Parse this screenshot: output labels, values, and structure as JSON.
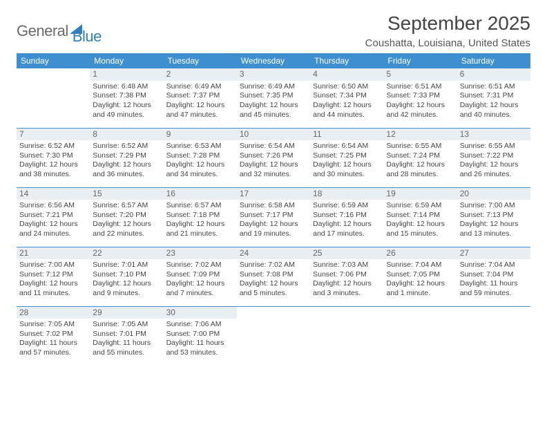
{
  "brand": {
    "word1": "General",
    "word2": "Blue"
  },
  "title": "September 2025",
  "location": "Coushatta, Louisiana, United States",
  "colors": {
    "accent": "#3d8fcf",
    "header_bg": "#3d8fcf",
    "header_text": "#ffffff",
    "daynum_bg": "#e9eef2",
    "border": "#3d8fcf",
    "text": "#444444",
    "logo_gray": "#6b6b6b",
    "logo_blue": "#2f7ec2"
  },
  "weekdays": [
    "Sunday",
    "Monday",
    "Tuesday",
    "Wednesday",
    "Thursday",
    "Friday",
    "Saturday"
  ],
  "calendar": {
    "first_weekday_index": 1,
    "days": [
      {
        "n": 1,
        "sunrise": "6:48 AM",
        "sunset": "7:38 PM",
        "daylight": "12 hours and 49 minutes."
      },
      {
        "n": 2,
        "sunrise": "6:49 AM",
        "sunset": "7:37 PM",
        "daylight": "12 hours and 47 minutes."
      },
      {
        "n": 3,
        "sunrise": "6:49 AM",
        "sunset": "7:35 PM",
        "daylight": "12 hours and 45 minutes."
      },
      {
        "n": 4,
        "sunrise": "6:50 AM",
        "sunset": "7:34 PM",
        "daylight": "12 hours and 44 minutes."
      },
      {
        "n": 5,
        "sunrise": "6:51 AM",
        "sunset": "7:33 PM",
        "daylight": "12 hours and 42 minutes."
      },
      {
        "n": 6,
        "sunrise": "6:51 AM",
        "sunset": "7:31 PM",
        "daylight": "12 hours and 40 minutes."
      },
      {
        "n": 7,
        "sunrise": "6:52 AM",
        "sunset": "7:30 PM",
        "daylight": "12 hours and 38 minutes."
      },
      {
        "n": 8,
        "sunrise": "6:52 AM",
        "sunset": "7:29 PM",
        "daylight": "12 hours and 36 minutes."
      },
      {
        "n": 9,
        "sunrise": "6:53 AM",
        "sunset": "7:28 PM",
        "daylight": "12 hours and 34 minutes."
      },
      {
        "n": 10,
        "sunrise": "6:54 AM",
        "sunset": "7:26 PM",
        "daylight": "12 hours and 32 minutes."
      },
      {
        "n": 11,
        "sunrise": "6:54 AM",
        "sunset": "7:25 PM",
        "daylight": "12 hours and 30 minutes."
      },
      {
        "n": 12,
        "sunrise": "6:55 AM",
        "sunset": "7:24 PM",
        "daylight": "12 hours and 28 minutes."
      },
      {
        "n": 13,
        "sunrise": "6:55 AM",
        "sunset": "7:22 PM",
        "daylight": "12 hours and 26 minutes."
      },
      {
        "n": 14,
        "sunrise": "6:56 AM",
        "sunset": "7:21 PM",
        "daylight": "12 hours and 24 minutes."
      },
      {
        "n": 15,
        "sunrise": "6:57 AM",
        "sunset": "7:20 PM",
        "daylight": "12 hours and 22 minutes."
      },
      {
        "n": 16,
        "sunrise": "6:57 AM",
        "sunset": "7:18 PM",
        "daylight": "12 hours and 21 minutes."
      },
      {
        "n": 17,
        "sunrise": "6:58 AM",
        "sunset": "7:17 PM",
        "daylight": "12 hours and 19 minutes."
      },
      {
        "n": 18,
        "sunrise": "6:59 AM",
        "sunset": "7:16 PM",
        "daylight": "12 hours and 17 minutes."
      },
      {
        "n": 19,
        "sunrise": "6:59 AM",
        "sunset": "7:14 PM",
        "daylight": "12 hours and 15 minutes."
      },
      {
        "n": 20,
        "sunrise": "7:00 AM",
        "sunset": "7:13 PM",
        "daylight": "12 hours and 13 minutes."
      },
      {
        "n": 21,
        "sunrise": "7:00 AM",
        "sunset": "7:12 PM",
        "daylight": "12 hours and 11 minutes."
      },
      {
        "n": 22,
        "sunrise": "7:01 AM",
        "sunset": "7:10 PM",
        "daylight": "12 hours and 9 minutes."
      },
      {
        "n": 23,
        "sunrise": "7:02 AM",
        "sunset": "7:09 PM",
        "daylight": "12 hours and 7 minutes."
      },
      {
        "n": 24,
        "sunrise": "7:02 AM",
        "sunset": "7:08 PM",
        "daylight": "12 hours and 5 minutes."
      },
      {
        "n": 25,
        "sunrise": "7:03 AM",
        "sunset": "7:06 PM",
        "daylight": "12 hours and 3 minutes."
      },
      {
        "n": 26,
        "sunrise": "7:04 AM",
        "sunset": "7:05 PM",
        "daylight": "12 hours and 1 minute."
      },
      {
        "n": 27,
        "sunrise": "7:04 AM",
        "sunset": "7:04 PM",
        "daylight": "11 hours and 59 minutes."
      },
      {
        "n": 28,
        "sunrise": "7:05 AM",
        "sunset": "7:02 PM",
        "daylight": "11 hours and 57 minutes."
      },
      {
        "n": 29,
        "sunrise": "7:05 AM",
        "sunset": "7:01 PM",
        "daylight": "11 hours and 55 minutes."
      },
      {
        "n": 30,
        "sunrise": "7:06 AM",
        "sunset": "7:00 PM",
        "daylight": "11 hours and 53 minutes."
      }
    ]
  },
  "labels": {
    "sunrise": "Sunrise:",
    "sunset": "Sunset:",
    "daylight": "Daylight:"
  }
}
